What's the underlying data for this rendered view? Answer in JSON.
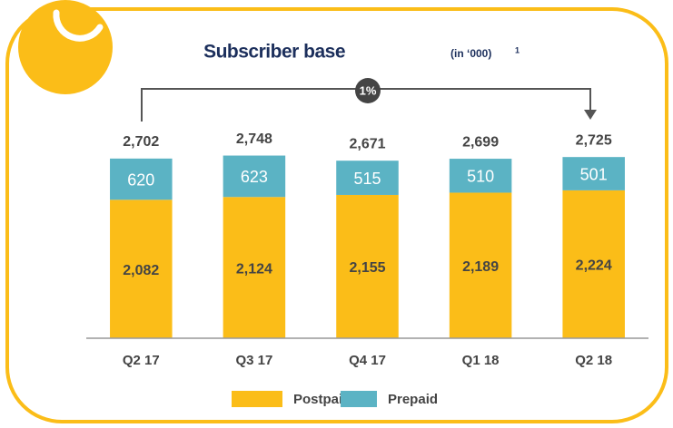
{
  "chart_data": {
    "type": "stacked_bar",
    "title": "Subscriber base",
    "subtitle": "(in ‘000)",
    "footnote_marker": "1",
    "annotation": "1%",
    "categories": [
      "Q2 17",
      "Q3 17",
      "Q4 17",
      "Q1 18",
      "Q2 18"
    ],
    "series": [
      {
        "name": "Postpaid",
        "color": "#fbbd18",
        "values": [
          2082,
          2124,
          2155,
          2189,
          2224
        ],
        "value_labels": [
          "2,082",
          "2,124",
          "2,155",
          "2,189",
          "2,224"
        ]
      },
      {
        "name": "Prepaid",
        "color": "#5bb3c4",
        "values": [
          620,
          623,
          515,
          510,
          501
        ]
      }
    ],
    "totals": {
      "values": [
        2702,
        2748,
        2671,
        2699,
        2725
      ],
      "value_labels": [
        "2,702",
        "2,748",
        "2,671",
        "2,699",
        "2,725"
      ]
    },
    "ylim": [
      0,
      3000
    ]
  }
}
